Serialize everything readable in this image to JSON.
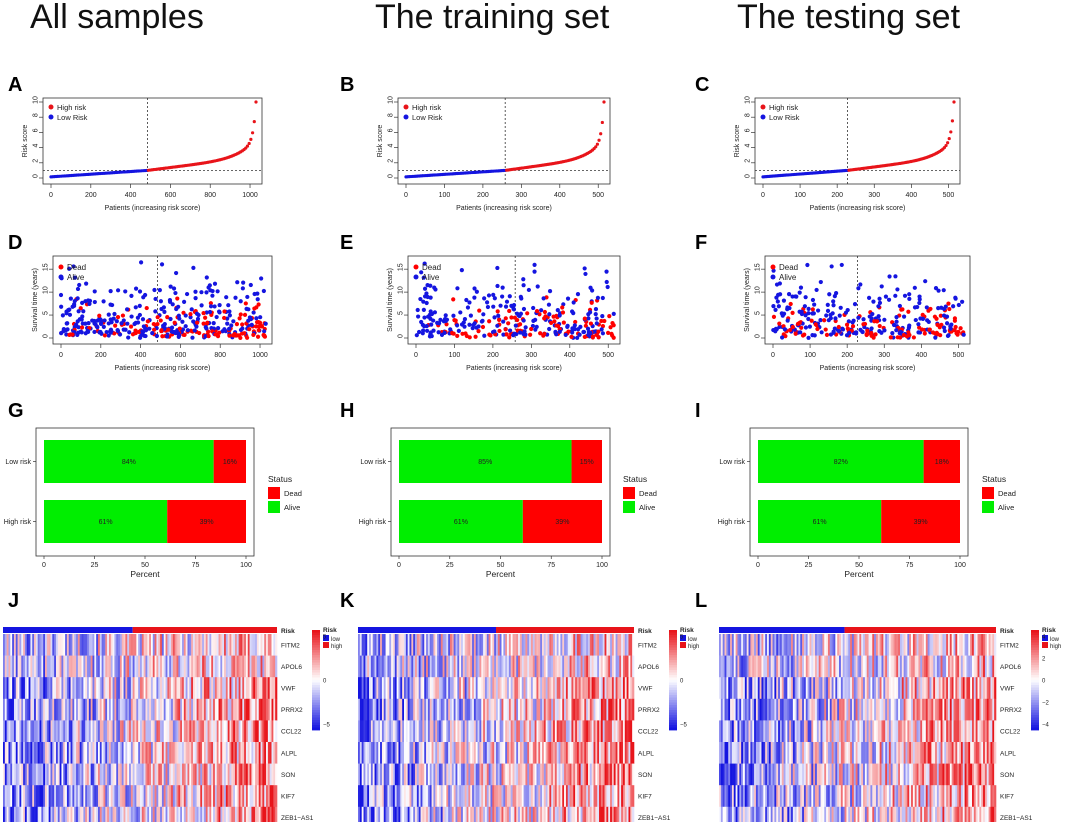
{
  "column_titles": [
    "All samples",
    "The training set",
    "The testing set"
  ],
  "panel_labels": [
    "A",
    "B",
    "C",
    "D",
    "E",
    "F",
    "G",
    "H",
    "I",
    "J",
    "K",
    "L"
  ],
  "colors": {
    "high": "#e8141a",
    "low": "#1515e0",
    "dead": "#ff0000",
    "alive": "#00ee00",
    "heat_high": "#e8141a",
    "heat_low": "#1515e0"
  },
  "chart_data": [
    {
      "type": "scatter",
      "id": "A",
      "ylabel": "Risk score",
      "xlabel": "Patients (increasing risk score)",
      "n": 1030,
      "cut": 485,
      "ylim": [
        0,
        10
      ],
      "yticks": [
        0,
        2,
        4,
        6,
        8,
        10
      ],
      "xticks": [
        0,
        200,
        400,
        600,
        800,
        1000
      ],
      "xlim": [
        0,
        1030
      ],
      "legend": [
        "High risk",
        "Low Risk"
      ],
      "max_score": 10,
      "threshold": 1.0
    },
    {
      "type": "scatter",
      "id": "B",
      "ylabel": "Risk score",
      "xlabel": "Patients (increasing risk score)",
      "n": 515,
      "cut": 258,
      "ylim": [
        0,
        10
      ],
      "yticks": [
        0,
        2,
        4,
        6,
        8,
        10
      ],
      "xticks": [
        0,
        100,
        200,
        300,
        400,
        500
      ],
      "xlim": [
        0,
        515
      ],
      "legend": [
        "High risk",
        "Low Risk"
      ],
      "max_score": 10,
      "threshold": 1.0
    },
    {
      "type": "scatter",
      "id": "C",
      "ylabel": "Risk score",
      "xlabel": "Patients (increasing risk score)",
      "n": 515,
      "cut": 228,
      "ylim": [
        0,
        10
      ],
      "yticks": [
        0,
        2,
        4,
        6,
        8,
        10
      ],
      "xticks": [
        0,
        100,
        200,
        300,
        400,
        500
      ],
      "xlim": [
        0,
        515
      ],
      "legend": [
        "High risk",
        "Low Risk"
      ],
      "max_score": 10,
      "threshold": 1.0
    },
    {
      "type": "scatter",
      "id": "D",
      "ylabel": "Survival time (years)",
      "xlabel": "Patients (increasing risk score)",
      "n": 1030,
      "cut": 485,
      "ylim": [
        0,
        17
      ],
      "yticks": [
        0,
        5,
        10,
        15
      ],
      "xticks": [
        0,
        200,
        400,
        600,
        800,
        1000
      ],
      "xlim": [
        0,
        1030
      ],
      "legend": [
        "Dead",
        "Alive"
      ],
      "points": 420,
      "seed": 11
    },
    {
      "type": "scatter",
      "id": "E",
      "ylabel": "Survival time (years)",
      "xlabel": "Patients (increasing risk score)",
      "n": 515,
      "cut": 258,
      "ylim": [
        0,
        17
      ],
      "yticks": [
        0,
        5,
        10,
        15
      ],
      "xticks": [
        0,
        100,
        200,
        300,
        400,
        500
      ],
      "xlim": [
        0,
        515
      ],
      "legend": [
        "Dead",
        "Alive"
      ],
      "points": 330,
      "seed": 23
    },
    {
      "type": "scatter",
      "id": "F",
      "ylabel": "Survival time (years)",
      "xlabel": "Patients (increasing risk score)",
      "n": 515,
      "cut": 228,
      "ylim": [
        0,
        17
      ],
      "yticks": [
        0,
        5,
        10,
        15
      ],
      "xticks": [
        0,
        100,
        200,
        300,
        400,
        500
      ],
      "xlim": [
        0,
        515
      ],
      "legend": [
        "Dead",
        "Alive"
      ],
      "points": 330,
      "seed": 37
    },
    {
      "type": "bar",
      "id": "G",
      "orientation": "horizontal",
      "stacked": true,
      "categories": [
        "Low risk",
        "High risk"
      ],
      "xlabel": "Percent",
      "xticks": [
        0,
        25,
        50,
        75,
        100
      ],
      "series": [
        {
          "name": "Alive",
          "values": [
            84,
            61
          ]
        },
        {
          "name": "Dead",
          "values": [
            16,
            39
          ]
        }
      ],
      "labels": [
        [
          "84%",
          "16%"
        ],
        [
          "61%",
          "39%"
        ]
      ],
      "legend_title": "Status",
      "legend": [
        "Dead",
        "Alive"
      ]
    },
    {
      "type": "bar",
      "id": "H",
      "orientation": "horizontal",
      "stacked": true,
      "categories": [
        "Low risk",
        "High risk"
      ],
      "xlabel": "Percent",
      "xticks": [
        0,
        25,
        50,
        75,
        100
      ],
      "series": [
        {
          "name": "Alive",
          "values": [
            85,
            61
          ]
        },
        {
          "name": "Dead",
          "values": [
            15,
            39
          ]
        }
      ],
      "labels": [
        [
          "85%",
          "15%"
        ],
        [
          "61%",
          "39%"
        ]
      ],
      "legend_title": "Status",
      "legend": [
        "Dead",
        "Alive"
      ]
    },
    {
      "type": "bar",
      "id": "I",
      "orientation": "horizontal",
      "stacked": true,
      "categories": [
        "Low risk",
        "High risk"
      ],
      "xlabel": "Percent",
      "xticks": [
        0,
        25,
        50,
        75,
        100
      ],
      "series": [
        {
          "name": "Alive",
          "values": [
            82,
            61
          ]
        },
        {
          "name": "Dead",
          "values": [
            18,
            39
          ]
        }
      ],
      "labels": [
        [
          "82%",
          "18%"
        ],
        [
          "61%",
          "39%"
        ]
      ],
      "legend_title": "Status",
      "legend": [
        "Dead",
        "Alive"
      ]
    },
    {
      "type": "heatmap",
      "id": "J",
      "genes": [
        "FITM2",
        "APOL6",
        "VWF",
        "PRRX2",
        "CCL22",
        "ALPL",
        "SON",
        "KIF7",
        "ZEB1−AS1"
      ],
      "risk_label": "Risk",
      "risk_legend": [
        "low",
        "high"
      ],
      "low_fraction": 0.47,
      "scale_ticks": [
        "5",
        "0",
        "−5"
      ],
      "seed": 101
    },
    {
      "type": "heatmap",
      "id": "K",
      "genes": [
        "FITM2",
        "APOL6",
        "VWF",
        "PRRX2",
        "CCL22",
        "ALPL",
        "SON",
        "KIF7",
        "ZEB1−AS1"
      ],
      "risk_label": "Risk",
      "risk_legend": [
        "low",
        "high"
      ],
      "low_fraction": 0.5,
      "scale_ticks": [
        "5",
        "0",
        "−5"
      ],
      "seed": 202
    },
    {
      "type": "heatmap",
      "id": "L",
      "genes": [
        "FITM2",
        "APOL6",
        "VWF",
        "PRRX2",
        "CCL22",
        "ALPL",
        "SON",
        "KIF7",
        "ZEB1−AS1"
      ],
      "risk_label": "Risk",
      "risk_legend": [
        "low",
        "high"
      ],
      "low_fraction": 0.45,
      "scale_ticks": [
        "4",
        "2",
        "0",
        "−2",
        "−4"
      ],
      "seed": 303
    }
  ]
}
